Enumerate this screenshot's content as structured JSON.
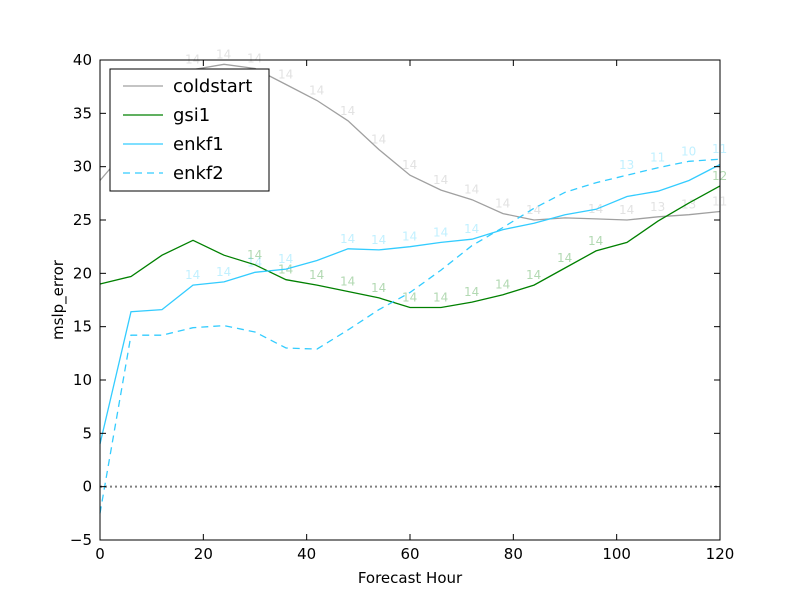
{
  "chart_data": {
    "type": "line",
    "title": "",
    "xlabel": "Forecast Hour",
    "ylabel": "mslp_error",
    "xlim": [
      0,
      120
    ],
    "ylim": [
      -5,
      40
    ],
    "xticks": [
      0,
      20,
      40,
      60,
      80,
      100,
      120
    ],
    "yticks": [
      -5,
      0,
      5,
      10,
      15,
      20,
      25,
      30,
      35,
      40
    ],
    "xtick_labels": [
      "0",
      "20",
      "40",
      "60",
      "80",
      "100",
      "120"
    ],
    "ytick_labels": [
      "−5",
      "0",
      "5",
      "10",
      "15",
      "20",
      "25",
      "30",
      "35",
      "40"
    ],
    "legend_position": "top-left",
    "reference_line": {
      "y": 0,
      "style": "dotted",
      "color": "#808080"
    },
    "x": [
      0,
      6,
      12,
      18,
      24,
      30,
      36,
      42,
      48,
      54,
      60,
      66,
      72,
      78,
      84,
      90,
      96,
      102,
      108,
      114,
      120
    ],
    "series": [
      {
        "name": "coldstart",
        "color": "#a0a0a0",
        "style": "solid",
        "values": [
          28.7,
          32.1,
          33.6,
          39.1,
          39.6,
          39.2,
          37.7,
          36.2,
          34.3,
          31.6,
          29.2,
          27.8,
          26.9,
          25.6,
          25.0,
          25.2,
          25.1,
          25.0,
          25.3,
          25.5,
          25.8
        ],
        "counts": [
          "",
          "",
          "",
          "14",
          "14",
          "14",
          "14",
          "14",
          "14",
          "14",
          "14",
          "14",
          "14",
          "14",
          "14",
          "",
          "14",
          "14",
          "13",
          "13",
          "11"
        ]
      },
      {
        "name": "gsi1",
        "color": "#008000",
        "style": "solid",
        "values": [
          19.0,
          19.7,
          21.7,
          23.1,
          21.7,
          20.8,
          19.4,
          18.9,
          18.3,
          17.7,
          16.8,
          16.8,
          17.3,
          18.0,
          18.9,
          20.5,
          22.1,
          22.9,
          24.9,
          26.6,
          28.2
        ],
        "counts": [
          "",
          "",
          "",
          "",
          "",
          "14",
          "14",
          "14",
          "14",
          "14",
          "14",
          "14",
          "14",
          "14",
          "14",
          "14",
          "14",
          "",
          "",
          "",
          "12"
        ]
      },
      {
        "name": "enkf1",
        "color": "#33ccff",
        "style": "solid",
        "values": [
          4.0,
          16.4,
          16.6,
          18.9,
          19.2,
          20.1,
          20.4,
          21.2,
          22.3,
          22.2,
          22.5,
          22.9,
          23.2,
          24.1,
          24.7,
          25.5,
          26.0,
          27.2,
          27.7,
          28.7,
          30.2
        ],
        "counts": [
          "",
          "",
          "",
          "14",
          "14",
          "14",
          "14",
          "",
          "14",
          "14",
          "14",
          "14",
          "14",
          "",
          "",
          "",
          "",
          "",
          "",
          "",
          ""
        ]
      },
      {
        "name": "enkf2",
        "color": "#33ccff",
        "style": "dashed",
        "values": [
          -2.5,
          14.2,
          14.2,
          14.9,
          15.1,
          14.5,
          13.0,
          12.9,
          14.7,
          16.6,
          18.2,
          20.3,
          22.6,
          24.3,
          26.1,
          27.6,
          28.5,
          29.2,
          29.9,
          30.5,
          30.7
        ],
        "counts": [
          "",
          "",
          "",
          "",
          "",
          "",
          "",
          "",
          "",
          "",
          "",
          "",
          "",
          "",
          "",
          "",
          "",
          "13",
          "11",
          "10",
          "11"
        ]
      }
    ]
  }
}
